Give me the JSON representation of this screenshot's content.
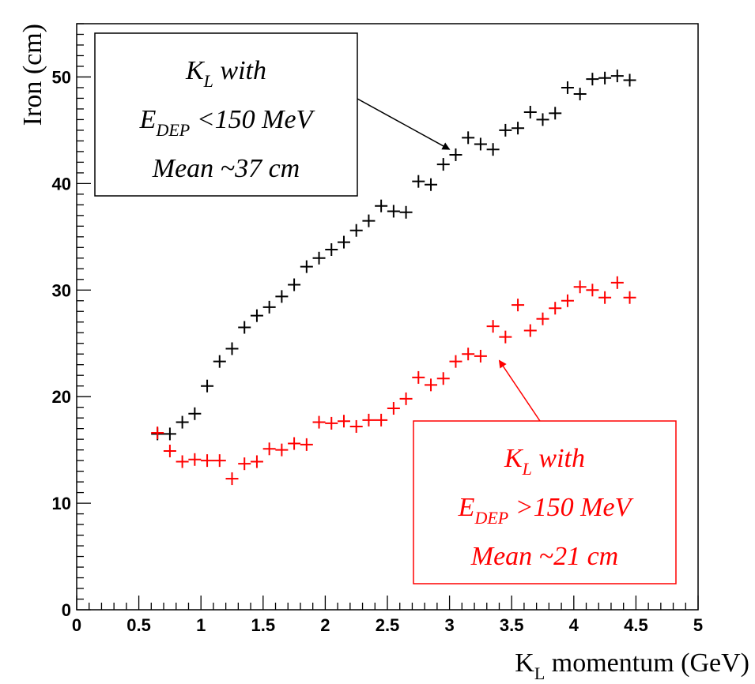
{
  "chart_data": {
    "type": "scatter",
    "xlabel": {
      "main": "K",
      "sub": "L",
      "rest": " momentum (GeV)"
    },
    "ylabel": "Iron (cm)",
    "xlim": [
      0,
      5
    ],
    "ylim": [
      0,
      55
    ],
    "xticks": [
      0,
      0.5,
      1,
      1.5,
      2,
      2.5,
      3,
      3.5,
      4,
      4.5,
      5
    ],
    "xtick_labels": [
      "0",
      "0.5",
      "1",
      "1.5",
      "2",
      "2.5",
      "3",
      "3.5",
      "4",
      "4.5",
      "5"
    ],
    "yticks": [
      0,
      10,
      20,
      30,
      40,
      50
    ],
    "ytick_labels": [
      "0",
      "10",
      "20",
      "30",
      "40",
      "50"
    ],
    "grid": false,
    "series": [
      {
        "color": "#000000",
        "x": [
          0.65,
          0.75,
          0.85,
          0.95,
          1.05,
          1.15,
          1.25,
          1.35,
          1.45,
          1.55,
          1.65,
          1.75,
          1.85,
          1.95,
          2.05,
          2.15,
          2.25,
          2.35,
          2.45,
          2.55,
          2.65,
          2.75,
          2.85,
          2.95,
          3.05,
          3.15,
          3.25,
          3.35,
          3.45,
          3.55,
          3.65,
          3.75,
          3.85,
          3.95,
          4.05,
          4.15,
          4.25,
          4.35,
          4.45
        ],
        "y": [
          16.5,
          16.5,
          17.6,
          18.4,
          21.0,
          23.3,
          24.5,
          26.5,
          27.6,
          28.4,
          29.4,
          30.5,
          32.2,
          33.0,
          33.8,
          34.5,
          35.6,
          36.5,
          37.9,
          37.4,
          37.3,
          40.2,
          39.9,
          41.8,
          42.7,
          44.3,
          43.7,
          43.2,
          45.0,
          45.2,
          46.7,
          46.0,
          46.6,
          49.0,
          48.4,
          49.8,
          49.9,
          50.1,
          49.7
        ]
      },
      {
        "color": "#ff0000",
        "x": [
          0.65,
          0.75,
          0.85,
          0.95,
          1.05,
          1.15,
          1.25,
          1.35,
          1.45,
          1.55,
          1.65,
          1.75,
          1.85,
          1.95,
          2.05,
          2.15,
          2.25,
          2.35,
          2.45,
          2.55,
          2.65,
          2.75,
          2.85,
          2.95,
          3.05,
          3.15,
          3.25,
          3.35,
          3.45,
          3.55,
          3.65,
          3.75,
          3.85,
          3.95,
          4.05,
          4.15,
          4.25,
          4.35,
          4.45
        ],
        "y": [
          16.6,
          14.9,
          13.9,
          14.1,
          14.0,
          14.0,
          12.3,
          13.7,
          13.9,
          15.1,
          15.0,
          15.6,
          15.5,
          17.6,
          17.5,
          17.7,
          17.2,
          17.8,
          17.8,
          18.9,
          19.8,
          21.8,
          21.1,
          21.7,
          23.3,
          24.0,
          23.8,
          26.6,
          25.6,
          28.6,
          26.2,
          27.3,
          28.3,
          29.0,
          30.3,
          30.0,
          29.3,
          30.7,
          29.3
        ]
      }
    ],
    "annotations": [
      {
        "color": "#000000",
        "line1": {
          "main": "K",
          "sub": "L",
          "rest": " with"
        },
        "line2": {
          "main": "E",
          "sub": "DEP",
          "rest": " <150 MeV"
        },
        "line3": "Mean ~37 cm",
        "arrow_to": [
          3.0,
          43.2
        ]
      },
      {
        "color": "#ff0000",
        "line1": {
          "main": "K",
          "sub": "L",
          "rest": " with"
        },
        "line2": {
          "main": "E",
          "sub": "DEP",
          "rest": " >150 MeV"
        },
        "line3": "Mean ~21 cm",
        "arrow_to": [
          3.4,
          23.4
        ]
      }
    ]
  }
}
